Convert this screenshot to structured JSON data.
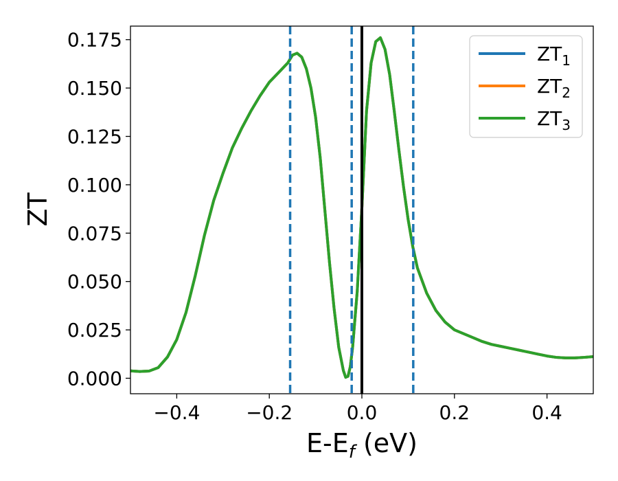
{
  "chart_data": {
    "type": "line",
    "xlabel": {
      "main": "E-E",
      "sub": "f",
      "tail": " (eV)"
    },
    "ylabel": "ZT",
    "xlim": [
      -0.5,
      0.5
    ],
    "ylim": [
      -0.008,
      0.182
    ],
    "xticks": [
      {
        "v": -0.4,
        "label": "−0.4"
      },
      {
        "v": -0.2,
        "label": "−0.2"
      },
      {
        "v": 0.0,
        "label": "0.0"
      },
      {
        "v": 0.2,
        "label": "0.2"
      },
      {
        "v": 0.4,
        "label": "0.4"
      }
    ],
    "yticks": [
      {
        "v": 0.0,
        "label": "0.000"
      },
      {
        "v": 0.025,
        "label": "0.025"
      },
      {
        "v": 0.05,
        "label": "0.050"
      },
      {
        "v": 0.075,
        "label": "0.075"
      },
      {
        "v": 0.1,
        "label": "0.100"
      },
      {
        "v": 0.125,
        "label": "0.125"
      },
      {
        "v": 0.15,
        "label": "0.150"
      },
      {
        "v": 0.175,
        "label": "0.175"
      }
    ],
    "grid": false,
    "legend_position": "top-right",
    "x": [
      -0.5,
      -0.48,
      -0.46,
      -0.44,
      -0.42,
      -0.4,
      -0.38,
      -0.36,
      -0.34,
      -0.32,
      -0.3,
      -0.28,
      -0.26,
      -0.24,
      -0.22,
      -0.2,
      -0.18,
      -0.16,
      -0.15,
      -0.14,
      -0.13,
      -0.12,
      -0.11,
      -0.1,
      -0.09,
      -0.08,
      -0.07,
      -0.06,
      -0.05,
      -0.04,
      -0.035,
      -0.03,
      -0.025,
      -0.02,
      -0.01,
      0.0,
      0.01,
      0.02,
      0.03,
      0.04,
      0.05,
      0.06,
      0.07,
      0.08,
      0.09,
      0.1,
      0.11,
      0.12,
      0.14,
      0.16,
      0.18,
      0.2,
      0.22,
      0.24,
      0.26,
      0.28,
      0.3,
      0.32,
      0.34,
      0.36,
      0.38,
      0.4,
      0.42,
      0.44,
      0.46,
      0.48,
      0.5
    ],
    "series": [
      {
        "name": "ZT",
        "sub": "1",
        "color": "#1f77b4",
        "values": [
          0.0038,
          0.0035,
          0.0037,
          0.0055,
          0.011,
          0.02,
          0.034,
          0.053,
          0.074,
          0.092,
          0.106,
          0.119,
          0.129,
          0.138,
          0.146,
          0.153,
          0.158,
          0.163,
          0.167,
          0.168,
          0.166,
          0.16,
          0.15,
          0.135,
          0.114,
          0.087,
          0.06,
          0.036,
          0.016,
          0.004,
          0.0005,
          0.001,
          0.006,
          0.016,
          0.045,
          0.088,
          0.138,
          0.163,
          0.174,
          0.176,
          0.17,
          0.157,
          0.138,
          0.118,
          0.099,
          0.082,
          0.068,
          0.057,
          0.044,
          0.035,
          0.029,
          0.025,
          0.023,
          0.021,
          0.019,
          0.0175,
          0.0165,
          0.0155,
          0.0145,
          0.0135,
          0.0125,
          0.0115,
          0.0108,
          0.0105,
          0.0105,
          0.0108,
          0.0112
        ]
      },
      {
        "name": "ZT",
        "sub": "2",
        "color": "#ff7f0e",
        "values": [
          0.0038,
          0.0035,
          0.0037,
          0.0055,
          0.011,
          0.02,
          0.034,
          0.053,
          0.074,
          0.092,
          0.106,
          0.119,
          0.129,
          0.138,
          0.146,
          0.153,
          0.158,
          0.163,
          0.167,
          0.168,
          0.166,
          0.16,
          0.15,
          0.135,
          0.114,
          0.087,
          0.06,
          0.036,
          0.016,
          0.004,
          0.0005,
          0.001,
          0.006,
          0.016,
          0.045,
          0.088,
          0.138,
          0.163,
          0.174,
          0.176,
          0.17,
          0.157,
          0.138,
          0.118,
          0.099,
          0.082,
          0.068,
          0.057,
          0.044,
          0.035,
          0.029,
          0.025,
          0.023,
          0.021,
          0.019,
          0.0175,
          0.0165,
          0.0155,
          0.0145,
          0.0135,
          0.0125,
          0.0115,
          0.0108,
          0.0105,
          0.0105,
          0.0108,
          0.0112
        ]
      },
      {
        "name": "ZT",
        "sub": "3",
        "color": "#2ca02c",
        "values": [
          0.0038,
          0.0035,
          0.0037,
          0.0055,
          0.011,
          0.02,
          0.034,
          0.053,
          0.074,
          0.092,
          0.106,
          0.119,
          0.129,
          0.138,
          0.146,
          0.153,
          0.158,
          0.163,
          0.167,
          0.168,
          0.166,
          0.16,
          0.15,
          0.135,
          0.114,
          0.087,
          0.06,
          0.036,
          0.016,
          0.004,
          0.0005,
          0.001,
          0.006,
          0.016,
          0.045,
          0.088,
          0.138,
          0.163,
          0.174,
          0.176,
          0.17,
          0.157,
          0.138,
          0.118,
          0.099,
          0.082,
          0.068,
          0.057,
          0.044,
          0.035,
          0.029,
          0.025,
          0.023,
          0.021,
          0.019,
          0.0175,
          0.0165,
          0.0155,
          0.0145,
          0.0135,
          0.0125,
          0.0115,
          0.0108,
          0.0105,
          0.0105,
          0.0108,
          0.0112
        ]
      }
    ],
    "vlines": [
      {
        "x": -0.155,
        "style": "dashed",
        "color": "#1f77b4"
      },
      {
        "x": -0.022,
        "style": "dashed",
        "color": "#1f77b4"
      },
      {
        "x": 0.0,
        "style": "solid",
        "color": "#000000"
      },
      {
        "x": 0.111,
        "style": "dashed",
        "color": "#1f77b4"
      }
    ]
  }
}
